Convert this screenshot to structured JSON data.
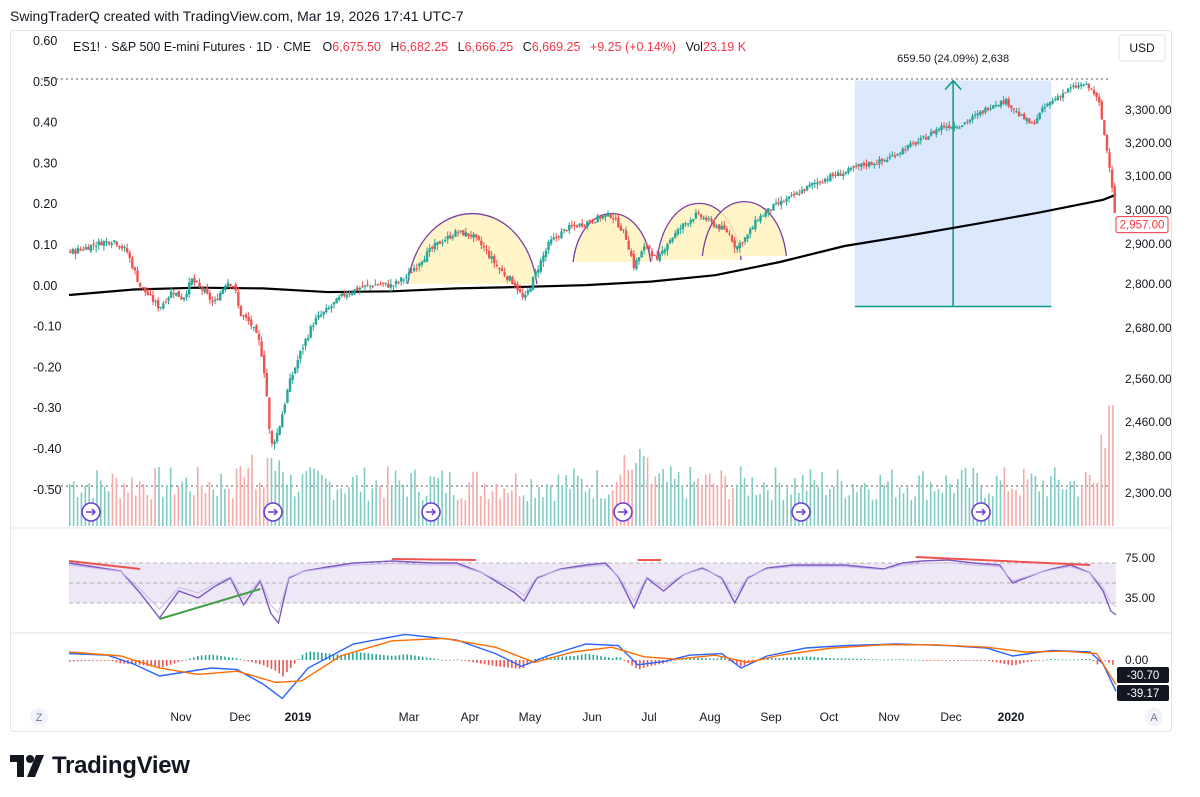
{
  "header": {
    "text": "SwingTraderQ created with TradingView.com, Mar 19, 2026 17:41 UTC-7"
  },
  "legend": {
    "symbol": "ES1! · S&P 500 E-mini Futures · 1D · CME",
    "o_label": "O",
    "o": "6,675.50",
    "h_label": "H",
    "h": "6,682.25",
    "l_label": "L",
    "l": "6,666.25",
    "c_label": "C",
    "c": "6,669.25",
    "change": "+9.25 (+0.14%)",
    "vol_label": "Vol",
    "vol": "23.19 K"
  },
  "currency_button": "USD",
  "measure_label": "659.50 (24.09%) 2,638",
  "last_price_label": "2,957.00",
  "bottom_left_button": "Z",
  "bottom_right_button": "A",
  "footer_brand": "TradingView",
  "colors": {
    "up": "#26a69a",
    "down": "#ef5350",
    "vol_up": "#80cbc4",
    "vol_down": "#f7a9a7",
    "ma": "#000000",
    "arc": "#7b3fa0",
    "arc_fill": "#fff3bf",
    "measure_fill": "#d6e4fb",
    "measure_line": "#089981",
    "rsi": "#7e57c2",
    "rsi_bg": "#ede7f6",
    "macd": "#2962ff",
    "signal": "#ff6d00"
  },
  "chart_data": [
    {
      "type": "candlestick",
      "title": "ES1! · S&P 500 E-mini Futures · 1D · CME",
      "x_ticks": [
        "Nov",
        "Dec",
        "2019",
        "Mar",
        "Apr",
        "May",
        "Jun",
        "Jul",
        "Aug",
        "Sep",
        "Oct",
        "Nov",
        "Dec",
        "2020"
      ],
      "y_ticks_right": [
        "3,300.00",
        "3,200.00",
        "3,100.00",
        "3,000.00",
        "2,900.00",
        "2,800.00",
        "2,680.00",
        "2,560.00",
        "2,460.00",
        "2,380.00",
        "2,300.00"
      ],
      "y_ticks_left": [
        "0.60",
        "0.50",
        "0.40",
        "0.30",
        "0.20",
        "0.10",
        "0.00",
        "-0.10",
        "-0.20",
        "-0.30",
        "-0.40",
        "-0.50"
      ],
      "price_path": [
        [
          0,
          2878
        ],
        [
          10,
          2888
        ],
        [
          25,
          2905
        ],
        [
          35,
          2910
        ],
        [
          45,
          2880
        ],
        [
          55,
          2795
        ],
        [
          70,
          2735
        ],
        [
          80,
          2782
        ],
        [
          88,
          2760
        ],
        [
          95,
          2810
        ],
        [
          105,
          2778
        ],
        [
          112,
          2745
        ],
        [
          122,
          2808
        ],
        [
          128,
          2795
        ],
        [
          132,
          2720
        ],
        [
          140,
          2695
        ],
        [
          148,
          2640
        ],
        [
          152,
          2560
        ],
        [
          156,
          2400
        ],
        [
          162,
          2440
        ],
        [
          170,
          2545
        ],
        [
          180,
          2630
        ],
        [
          190,
          2700
        ],
        [
          200,
          2730
        ],
        [
          212,
          2770
        ],
        [
          225,
          2790
        ],
        [
          240,
          2800
        ],
        [
          250,
          2795
        ],
        [
          262,
          2820
        ],
        [
          272,
          2860
        ],
        [
          285,
          2900
        ],
        [
          300,
          2935
        ],
        [
          312,
          2925
        ],
        [
          322,
          2885
        ],
        [
          332,
          2840
        ],
        [
          345,
          2800
        ],
        [
          352,
          2755
        ],
        [
          362,
          2835
        ],
        [
          372,
          2905
        ],
        [
          385,
          2945
        ],
        [
          398,
          2960
        ],
        [
          412,
          2980
        ],
        [
          420,
          2985
        ],
        [
          430,
          2930
        ],
        [
          437,
          2845
        ],
        [
          447,
          2900
        ],
        [
          455,
          2855
        ],
        [
          462,
          2900
        ],
        [
          475,
          2955
        ],
        [
          485,
          2985
        ],
        [
          492,
          2975
        ],
        [
          500,
          2955
        ],
        [
          510,
          2935
        ],
        [
          516,
          2890
        ],
        [
          525,
          2925
        ],
        [
          533,
          2975
        ],
        [
          545,
          3010
        ],
        [
          560,
          3040
        ],
        [
          575,
          3075
        ],
        [
          590,
          3100
        ],
        [
          600,
          3110
        ],
        [
          615,
          3135
        ],
        [
          630,
          3145
        ],
        [
          645,
          3180
        ],
        [
          660,
          3210
        ],
        [
          675,
          3250
        ],
        [
          690,
          3255
        ],
        [
          705,
          3290
        ],
        [
          715,
          3320
        ],
        [
          725,
          3330
        ],
        [
          735,
          3285
        ],
        [
          745,
          3255
        ],
        [
          755,
          3310
        ],
        [
          765,
          3345
        ],
        [
          775,
          3372
        ],
        [
          785,
          3385
        ],
        [
          792,
          3365
        ],
        [
          797,
          3320
        ],
        [
          802,
          3200
        ],
        [
          806,
          3110
        ],
        [
          810,
          2957
        ]
      ],
      "moving_average_200": [
        [
          0,
          2770
        ],
        [
          50,
          2785
        ],
        [
          100,
          2790
        ],
        [
          150,
          2788
        ],
        [
          200,
          2778
        ],
        [
          250,
          2780
        ],
        [
          300,
          2788
        ],
        [
          350,
          2792
        ],
        [
          400,
          2797
        ],
        [
          450,
          2806
        ],
        [
          500,
          2822
        ],
        [
          550,
          2855
        ],
        [
          600,
          2895
        ],
        [
          650,
          2925
        ],
        [
          700,
          2958
        ],
        [
          750,
          2992
        ],
        [
          800,
          3030
        ],
        [
          810,
          3045
        ]
      ],
      "measure": {
        "start_price": 2738.5,
        "end_price": 3398,
        "change": "659.50 (24.09%)",
        "bars": "2,638"
      },
      "last_price": 2957.0,
      "annotations": [
        "4 rounded tops (yellow arcs)",
        "200-day moving average",
        "price range measure"
      ]
    },
    {
      "type": "line",
      "title": "RSI",
      "y_ticks": [
        "75.00",
        "35.00"
      ],
      "levels": [
        70,
        50,
        30
      ],
      "rsi_path": [
        [
          0,
          70
        ],
        [
          20,
          66
        ],
        [
          40,
          62
        ],
        [
          55,
          40
        ],
        [
          70,
          15
        ],
        [
          85,
          42
        ],
        [
          100,
          35
        ],
        [
          112,
          46
        ],
        [
          125,
          55
        ],
        [
          135,
          28
        ],
        [
          148,
          52
        ],
        [
          156,
          20
        ],
        [
          162,
          10
        ],
        [
          170,
          55
        ],
        [
          182,
          62
        ],
        [
          200,
          66
        ],
        [
          220,
          70
        ],
        [
          250,
          72
        ],
        [
          280,
          70
        ],
        [
          300,
          70
        ],
        [
          320,
          60
        ],
        [
          335,
          48
        ],
        [
          345,
          40
        ],
        [
          352,
          32
        ],
        [
          362,
          55
        ],
        [
          380,
          64
        ],
        [
          400,
          68
        ],
        [
          415,
          70
        ],
        [
          425,
          56
        ],
        [
          437,
          25
        ],
        [
          447,
          55
        ],
        [
          460,
          42
        ],
        [
          475,
          58
        ],
        [
          490,
          65
        ],
        [
          505,
          55
        ],
        [
          515,
          30
        ],
        [
          525,
          55
        ],
        [
          540,
          65
        ],
        [
          560,
          68
        ],
        [
          580,
          68
        ],
        [
          600,
          68
        ],
        [
          615,
          66
        ],
        [
          630,
          64
        ],
        [
          645,
          70
        ],
        [
          660,
          72
        ],
        [
          680,
          73
        ],
        [
          700,
          70
        ],
        [
          720,
          68
        ],
        [
          730,
          50
        ],
        [
          740,
          55
        ],
        [
          750,
          60
        ],
        [
          760,
          64
        ],
        [
          775,
          68
        ],
        [
          790,
          60
        ],
        [
          800,
          42
        ],
        [
          806,
          22
        ],
        [
          810,
          18
        ]
      ]
    },
    {
      "type": "line",
      "title": "MACD",
      "y_ticks": [
        "0.00",
        "-30.70",
        "-39.17"
      ],
      "macd_path": [
        [
          0,
          8
        ],
        [
          30,
          6
        ],
        [
          50,
          -5
        ],
        [
          70,
          -20
        ],
        [
          90,
          -15
        ],
        [
          110,
          -10
        ],
        [
          130,
          -12
        ],
        [
          150,
          -30
        ],
        [
          165,
          -48
        ],
        [
          185,
          -10
        ],
        [
          220,
          20
        ],
        [
          260,
          32
        ],
        [
          300,
          25
        ],
        [
          330,
          8
        ],
        [
          350,
          -8
        ],
        [
          370,
          5
        ],
        [
          400,
          20
        ],
        [
          425,
          18
        ],
        [
          440,
          -6
        ],
        [
          460,
          -2
        ],
        [
          480,
          6
        ],
        [
          505,
          8
        ],
        [
          520,
          -10
        ],
        [
          540,
          5
        ],
        [
          570,
          15
        ],
        [
          600,
          18
        ],
        [
          640,
          20
        ],
        [
          680,
          18
        ],
        [
          710,
          15
        ],
        [
          730,
          5
        ],
        [
          760,
          12
        ],
        [
          790,
          10
        ],
        [
          800,
          -5
        ],
        [
          810,
          -39.17
        ]
      ],
      "signal_path": [
        [
          0,
          10
        ],
        [
          40,
          5
        ],
        [
          70,
          -10
        ],
        [
          100,
          -18
        ],
        [
          130,
          -14
        ],
        [
          160,
          -28
        ],
        [
          180,
          -26
        ],
        [
          210,
          5
        ],
        [
          250,
          24
        ],
        [
          290,
          27
        ],
        [
          330,
          16
        ],
        [
          360,
          -3
        ],
        [
          390,
          10
        ],
        [
          420,
          16
        ],
        [
          445,
          4
        ],
        [
          470,
          1
        ],
        [
          500,
          6
        ],
        [
          525,
          -3
        ],
        [
          550,
          6
        ],
        [
          590,
          15
        ],
        [
          630,
          19
        ],
        [
          670,
          19
        ],
        [
          710,
          16
        ],
        [
          740,
          10
        ],
        [
          770,
          11
        ],
        [
          795,
          8
        ],
        [
          810,
          -30.7
        ]
      ]
    }
  ]
}
